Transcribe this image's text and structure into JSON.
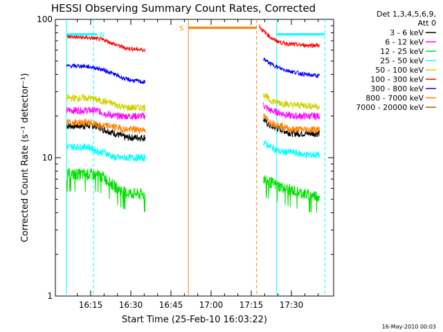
{
  "chart_data": {
    "type": "line",
    "title": "HESSI Observing Summary Count Rates, Corrected",
    "xlabel": "Start Time (25-Feb-10 16:03:22)",
    "ylabel": "Corrected Count Rate (s⁻¹ detector⁻¹)",
    "yscale": "log",
    "ylim": [
      1,
      100
    ],
    "xlim": [
      6.0,
      43.0
    ],
    "x_units": "minutes after 16:00 UT",
    "x_ticks": [
      {
        "value": 15,
        "label": "16:15"
      },
      {
        "value": 30,
        "label": "16:30"
      },
      {
        "value": 45,
        "label": "16:45"
      },
      {
        "value": 60,
        "label": "17:00"
      },
      {
        "value": 75,
        "label": "17:15"
      },
      {
        "value": 90,
        "label": "17:30"
      }
    ],
    "y_ticks": [
      {
        "value": 1,
        "label": "1"
      },
      {
        "value": 10,
        "label": "10"
      },
      {
        "value": 100,
        "label": "100"
      }
    ],
    "legend_header": [
      "Det 1,3,4,5,6,9,",
      "Att 0"
    ],
    "legend_position": "right",
    "series": [
      {
        "name": "3 - 6 keV",
        "color": "#000000",
        "segments": [
          {
            "x": [
              6.0,
              15.0,
              17.0,
              20.0,
              24.0,
              28.0,
              35.5
            ],
            "y": [
              17,
              17,
              17,
              16,
              15,
              14,
              14
            ]
          },
          {
            "x": [
              79.5,
              82.0,
              86.0,
              90.0,
              95.0,
              100.5
            ],
            "y": [
              19,
              17,
              16,
              15,
              15,
              15
            ]
          }
        ]
      },
      {
        "name": "6 - 12 keV",
        "color": "#ff00ff",
        "segments": [
          {
            "x": [
              6.0,
              15.0,
              17.0,
              20.0,
              24.0,
              28.0,
              35.5
            ],
            "y": [
              22,
              22,
              22,
              21,
              20,
              20,
              20
            ]
          },
          {
            "x": [
              79.5,
              82.0,
              86.0,
              90.0,
              95.0,
              100.5
            ],
            "y": [
              24,
              22,
              21,
              20,
              20,
              20
            ]
          }
        ]
      },
      {
        "name": "12 - 25 keV",
        "color": "#00e000",
        "segments": [
          {
            "x": [
              6.0,
              14.0,
              18.0,
              20.0,
              24.0,
              28.0,
              35.5
            ],
            "y": [
              7.6,
              7.6,
              7.5,
              7.2,
              6.2,
              5.6,
              5.4
            ]
          },
          {
            "x": [
              79.5,
              81.0,
              84.0,
              88.0,
              92.0,
              96.0,
              100.5
            ],
            "y": [
              7.2,
              6.8,
              6.4,
              6.0,
              5.7,
              5.4,
              5.3
            ]
          }
        ]
      },
      {
        "name": "25 - 50 keV",
        "color": "#00ffff",
        "segments": [
          {
            "x": [
              6.0,
              14.0,
              18.0,
              20.0,
              24.0,
              28.0,
              35.5
            ],
            "y": [
              12,
              12,
              11,
              11,
              10,
              10,
              10
            ]
          },
          {
            "x": [
              79.5,
              82.0,
              86.0,
              90.0,
              95.0,
              100.5
            ],
            "y": [
              13,
              12,
              11,
              11,
              10.5,
              10.5
            ]
          }
        ]
      },
      {
        "name": "50 - 100 keV",
        "color": "#d0d000",
        "segments": [
          {
            "x": [
              6.0,
              15.0,
              18.0,
              22.0,
              28.0,
              35.5
            ],
            "y": [
              27,
              27,
              26,
              25,
              23,
              23
            ]
          },
          {
            "x": [
              79.5,
              82.0,
              86.0,
              90.0,
              95.0,
              100.5
            ],
            "y": [
              29,
              26,
              25,
              24,
              24,
              23.5
            ]
          }
        ]
      },
      {
        "name": "100 - 300 keV",
        "color": "#ff0000",
        "segments": [
          {
            "x": [
              6.0,
              12.0,
              16.0,
              20.0,
              24.0,
              28.0,
              31.0,
              35.5
            ],
            "y": [
              75,
              74,
              73,
              71,
              66,
              62,
              61,
              60
            ]
          },
          {
            "x": [
              78.0,
              79.0,
              81.0,
              83.0,
              86.0,
              90.0,
              95.0,
              100.5
            ],
            "y": [
              90,
              84,
              78,
              72,
              68,
              66,
              65,
              65
            ]
          }
        ]
      },
      {
        "name": "300 - 800 keV",
        "color": "#0000ff",
        "segments": [
          {
            "x": [
              6.0,
              12.0,
              16.0,
              20.0,
              24.0,
              28.0,
              35.5
            ],
            "y": [
              46,
              46,
              45,
              43,
              40,
              37,
              35
            ]
          },
          {
            "x": [
              79.5,
              82.0,
              86.0,
              90.0,
              95.0,
              100.5
            ],
            "y": [
              52,
              48,
              44,
              42,
              40,
              39
            ]
          }
        ]
      },
      {
        "name": "800 - 7000 keV",
        "color": "#ff8000",
        "segments": [
          {
            "x": [
              6.0,
              15.0,
              18.0,
              22.0,
              28.0,
              35.5
            ],
            "y": [
              18,
              18,
              17,
              17,
              16,
              16
            ]
          },
          {
            "x": [
              79.5,
              82.0,
              86.0,
              90.0,
              95.0,
              100.5
            ],
            "y": [
              20,
              18,
              17,
              16,
              16,
              16
            ]
          },
          {
            "x": [
              51.5,
              77.0
            ],
            "y": [
              87,
              87
            ]
          }
        ]
      },
      {
        "name": "7000 - 20000 keV",
        "color": "#a06000",
        "segments": []
      }
    ],
    "overlay_marks": [
      {
        "label": "N",
        "color": "#00ffff",
        "x_start": 6.0,
        "x_end": 17.5,
        "y": 78
      },
      {
        "label": "S",
        "color": "#ff8000",
        "x_start": 51.5,
        "x_end": 77.0,
        "y": 87
      }
    ],
    "vertical_lines": [
      {
        "x": 6.0,
        "color": "#00ffff",
        "style": "solid"
      },
      {
        "x": 16.0,
        "color": "#00ffff",
        "style": "dashed"
      },
      {
        "x": 51.5,
        "color": "#ff8000",
        "style": "solid"
      },
      {
        "x": 77.0,
        "color": "#ff8000",
        "style": "dashed"
      },
      {
        "x": 84.5,
        "color": "#00ffff",
        "style": "solid"
      },
      {
        "x": 102.5,
        "color": "#00ffff",
        "style": "dashed"
      }
    ],
    "footer_stamp": "16-May-2010 00:03"
  }
}
